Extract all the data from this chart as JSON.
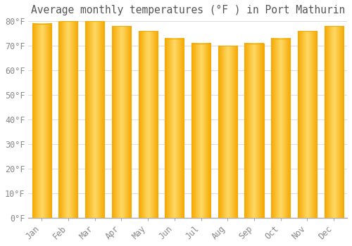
{
  "title": "Average monthly temperatures (°F ) in Port Mathurin",
  "months": [
    "Jan",
    "Feb",
    "Mar",
    "Apr",
    "May",
    "Jun",
    "Jul",
    "Aug",
    "Sep",
    "Oct",
    "Nov",
    "Dec"
  ],
  "values": [
    79,
    80,
    80,
    78,
    76,
    73,
    71,
    70,
    71,
    73,
    76,
    78
  ],
  "bar_color_edge": "#F5A800",
  "bar_color_center": "#FFD966",
  "ylim": [
    0,
    80
  ],
  "yticks": [
    0,
    10,
    20,
    30,
    40,
    50,
    60,
    70,
    80
  ],
  "ytick_labels": [
    "0°F",
    "10°F",
    "20°F",
    "30°F",
    "40°F",
    "50°F",
    "60°F",
    "70°F",
    "80°F"
  ],
  "background_color": "#FFFFFF",
  "grid_color": "#DDDDDD",
  "title_fontsize": 10.5,
  "tick_fontsize": 8.5,
  "font_family": "monospace",
  "bar_width": 0.72
}
